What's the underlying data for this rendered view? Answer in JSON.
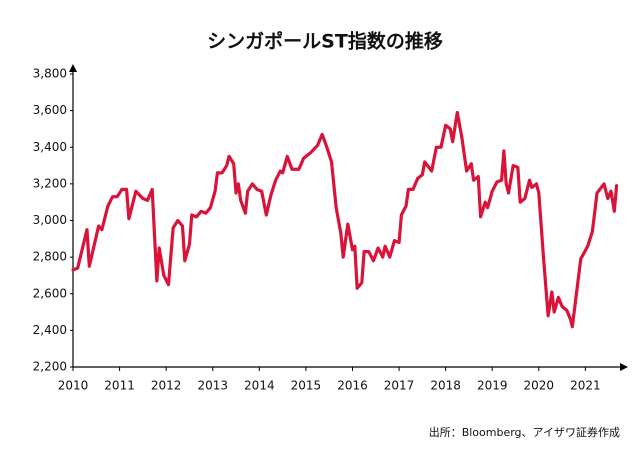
{
  "chart_data": {
    "type": "line",
    "title": "シンガポールST指数の推移",
    "source": "出所：Bloomberg、アイザワ証券作成",
    "color": "#d8143a",
    "xlim": [
      2010,
      2021.7
    ],
    "xticks": [
      2010,
      2011,
      2012,
      2013,
      2014,
      2015,
      2016,
      2017,
      2018,
      2019,
      2020,
      2021
    ],
    "ylim": [
      2200,
      3800
    ],
    "yticks": [
      {
        "value": 2200,
        "label": "2,200"
      },
      {
        "value": 2400,
        "label": "2,400"
      },
      {
        "value": 2600,
        "label": "2,600"
      },
      {
        "value": 2800,
        "label": "2,800"
      },
      {
        "value": 3000,
        "label": "3,000"
      },
      {
        "value": 3200,
        "label": "3,200"
      },
      {
        "value": 3400,
        "label": "3,400"
      },
      {
        "value": 3600,
        "label": "3,600"
      },
      {
        "value": 3800,
        "label": "3,800"
      }
    ],
    "x": [
      2010.0,
      2010.1,
      2010.3,
      2010.35,
      2010.55,
      2010.62,
      2010.75,
      2010.85,
      2010.95,
      2011.05,
      2011.15,
      2011.2,
      2011.35,
      2011.5,
      2011.6,
      2011.7,
      2011.8,
      2011.85,
      2011.95,
      2012.05,
      2012.15,
      2012.25,
      2012.35,
      2012.4,
      2012.5,
      2012.55,
      2012.65,
      2012.75,
      2012.85,
      2012.95,
      2013.05,
      2013.1,
      2013.2,
      2013.3,
      2013.35,
      2013.45,
      2013.5,
      2013.55,
      2013.6,
      2013.7,
      2013.75,
      2013.85,
      2013.95,
      2014.05,
      2014.15,
      2014.25,
      2014.35,
      2014.45,
      2014.5,
      2014.6,
      2014.7,
      2014.85,
      2014.95,
      2015.1,
      2015.25,
      2015.35,
      2015.45,
      2015.55,
      2015.65,
      2015.75,
      2015.8,
      2015.9,
      2016.0,
      2016.05,
      2016.1,
      2016.2,
      2016.25,
      2016.35,
      2016.45,
      2016.55,
      2016.65,
      2016.7,
      2016.8,
      2016.9,
      2017.0,
      2017.05,
      2017.15,
      2017.2,
      2017.3,
      2017.4,
      2017.5,
      2017.55,
      2017.7,
      2017.8,
      2017.9,
      2018.0,
      2018.1,
      2018.15,
      2018.25,
      2018.35,
      2018.45,
      2018.55,
      2018.6,
      2018.7,
      2018.75,
      2018.85,
      2018.9,
      2019.0,
      2019.1,
      2019.2,
      2019.25,
      2019.3,
      2019.35,
      2019.45,
      2019.55,
      2019.6,
      2019.7,
      2019.8,
      2019.85,
      2019.95,
      2020.0,
      2020.1,
      2020.2,
      2020.28,
      2020.33,
      2020.42,
      2020.5,
      2020.6,
      2020.68,
      2020.72,
      2020.9,
      2021.05,
      2021.15,
      2021.25,
      2021.4,
      2021.48,
      2021.55,
      2021.62,
      2021.67
    ],
    "values": [
      2730,
      2740,
      2950,
      2750,
      2970,
      2950,
      3080,
      3130,
      3130,
      3170,
      3170,
      3010,
      3160,
      3120,
      3110,
      3170,
      2670,
      2850,
      2700,
      2650,
      2960,
      3000,
      2970,
      2780,
      2870,
      3030,
      3020,
      3050,
      3040,
      3070,
      3160,
      3260,
      3260,
      3300,
      3350,
      3310,
      3150,
      3200,
      3110,
      3040,
      3160,
      3200,
      3170,
      3160,
      3030,
      3140,
      3220,
      3270,
      3260,
      3350,
      3280,
      3280,
      3340,
      3370,
      3410,
      3470,
      3400,
      3320,
      3070,
      2930,
      2800,
      2980,
      2840,
      2860,
      2630,
      2660,
      2830,
      2830,
      2780,
      2850,
      2800,
      2860,
      2800,
      2890,
      2880,
      3030,
      3080,
      3170,
      3170,
      3230,
      3250,
      3320,
      3270,
      3400,
      3400,
      3520,
      3500,
      3430,
      3590,
      3450,
      3270,
      3310,
      3220,
      3240,
      3020,
      3100,
      3070,
      3160,
      3210,
      3220,
      3380,
      3200,
      3150,
      3300,
      3290,
      3100,
      3120,
      3220,
      3180,
      3200,
      3150,
      2800,
      2480,
      2610,
      2500,
      2580,
      2530,
      2510,
      2460,
      2420,
      2790,
      2860,
      2940,
      3150,
      3200,
      3120,
      3160,
      3050,
      3190
    ]
  }
}
